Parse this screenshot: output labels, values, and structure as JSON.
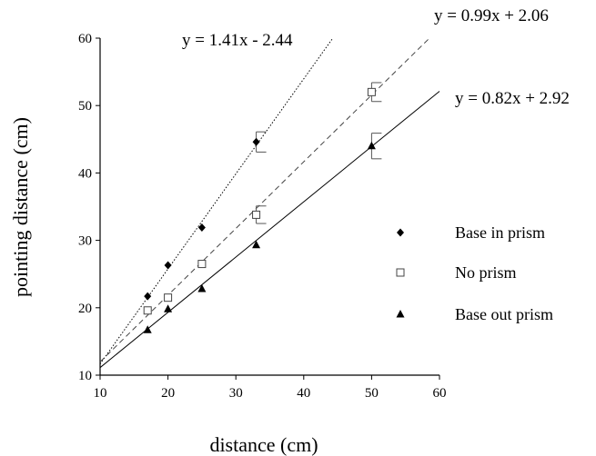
{
  "chart_data": {
    "type": "scatter",
    "xlabel": "distance (cm)",
    "ylabel": "pointing  distance (cm)",
    "xlim": [
      10,
      60
    ],
    "ylim": [
      10,
      60
    ],
    "xticks": [
      10,
      20,
      30,
      40,
      50,
      60
    ],
    "yticks": [
      10,
      20,
      30,
      40,
      50,
      60
    ],
    "grid": false,
    "legend_position": "right",
    "series": [
      {
        "name": "Base in prism",
        "marker": "diamond",
        "color": "#000000",
        "x": [
          17,
          20,
          25,
          33
        ],
        "y": [
          21.7,
          26.3,
          31.9,
          44.6
        ],
        "error": [
          null,
          null,
          null,
          1.5
        ],
        "fit": {
          "label": "y = 1.41x - 2.44",
          "slope": 1.41,
          "intercept": -2.44,
          "x_range": [
            10,
            44.3
          ],
          "style": "dotted"
        }
      },
      {
        "name": "No prism",
        "marker": "open-square",
        "color": "#444444",
        "x": [
          17,
          20,
          25,
          33,
          50
        ],
        "y": [
          19.6,
          21.5,
          26.5,
          33.8,
          52.0
        ],
        "error": [
          null,
          null,
          null,
          1.3,
          1.4
        ],
        "fit": {
          "label": "y = 0.99x + 2.06",
          "slope": 0.99,
          "intercept": 2.06,
          "x_range": [
            10,
            58.5
          ],
          "style": "dashed"
        }
      },
      {
        "name": "Base out prism",
        "marker": "triangle",
        "color": "#000000",
        "x": [
          17,
          20,
          25,
          33,
          50
        ],
        "y": [
          16.7,
          19.8,
          22.8,
          29.3,
          44.0
        ],
        "error": [
          null,
          null,
          null,
          null,
          1.9
        ],
        "fit": {
          "label": "y = 0.82x + 2.92",
          "slope": 0.82,
          "intercept": 2.92,
          "x_range": [
            10,
            60
          ],
          "style": "solid"
        }
      }
    ]
  }
}
